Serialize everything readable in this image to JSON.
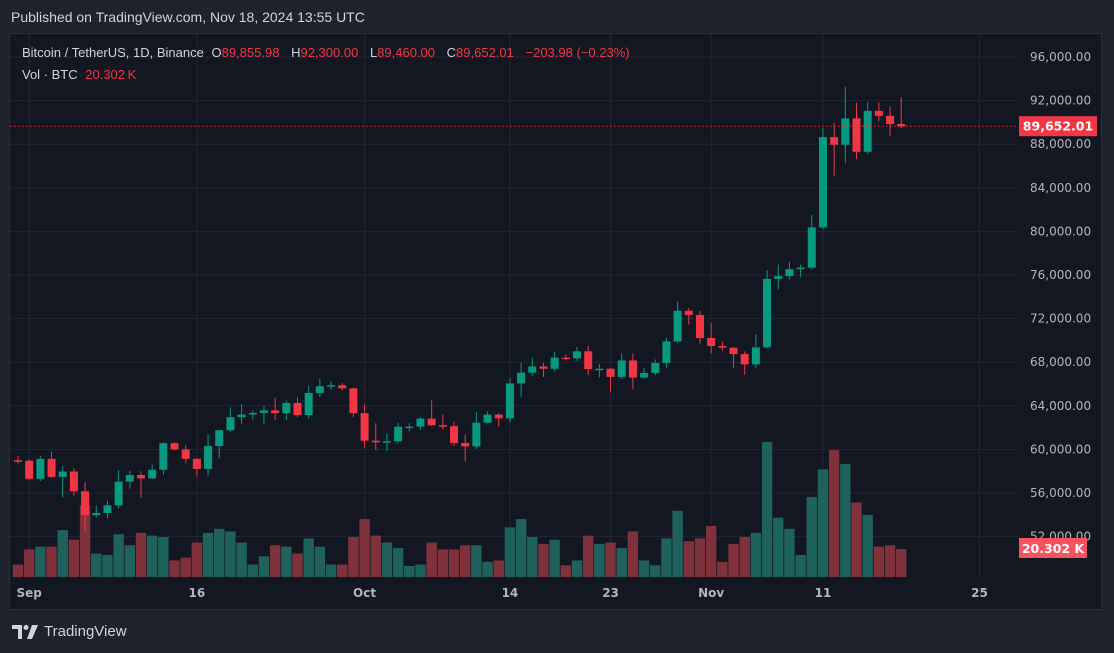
{
  "published": "Published on TradingView.com, Nov 18, 2024 13:55 UTC",
  "legend": {
    "symbol": "Bitcoin / TetherUS, 1D, Binance",
    "o_label": "O",
    "o": "89,855.98",
    "h_label": "H",
    "h": "92,300.00",
    "l_label": "L",
    "l": "89,460.00",
    "c_label": "C",
    "c": "89,652.01",
    "change": "−203.98 (−0.23%)",
    "vol_label": "Vol · BTC",
    "vol_value": "20.302 K"
  },
  "footer": {
    "brand": "TradingView",
    "logo_icon": "tradingview-logo-icon"
  },
  "colors": {
    "up": "#089981",
    "down": "#f23645",
    "vol_up": "#1f615d",
    "vol_down": "#7f323b",
    "background": "#131722"
  },
  "chart_data": {
    "type": "candlestick",
    "title": "Bitcoin / TetherUS, 1D, Binance",
    "start_date": "2024-08-31",
    "end_date": "2024-11-18",
    "ylim": [
      50500,
      97500
    ],
    "y_ticks": [
      96000,
      92000,
      88000,
      84000,
      80000,
      76000,
      72000,
      68000,
      64000,
      60000,
      56000,
      52000
    ],
    "y_tick_labels": [
      "96,000.00",
      "92,000.00",
      "88,000.00",
      "84,000.00",
      "80,000.00",
      "76,000.00",
      "72,000.00",
      "68,000.00",
      "64,000.00",
      "60,000.00",
      "56,000.00",
      "52,000.00"
    ],
    "x_ticks": [
      {
        "label": "Sep",
        "index": 1
      },
      {
        "label": "16",
        "index": 16
      },
      {
        "label": "Oct",
        "index": 31
      },
      {
        "label": "14",
        "index": 44
      },
      {
        "label": "23",
        "index": 53
      },
      {
        "label": "Nov",
        "index": 62
      },
      {
        "label": "11",
        "index": 72
      },
      {
        "label": "25",
        "index": 86
      }
    ],
    "last_price": 89652.01,
    "last_price_label": "89,652.01",
    "last_volume_label": "20.302 K",
    "volume_unit": "K BTC",
    "grid": true,
    "candles": [
      [
        59000,
        59400,
        58700,
        58970,
        9
      ],
      [
        58970,
        59100,
        57200,
        57300,
        20
      ],
      [
        57300,
        59400,
        57100,
        59130,
        22
      ],
      [
        59130,
        59800,
        57400,
        57480,
        22
      ],
      [
        57480,
        58500,
        55600,
        57970,
        34
      ],
      [
        57970,
        58300,
        55700,
        56160,
        27
      ],
      [
        56160,
        56990,
        52550,
        53960,
        52
      ],
      [
        53960,
        54850,
        53750,
        54160,
        17
      ],
      [
        54160,
        55300,
        53650,
        54870,
        16
      ],
      [
        54870,
        58100,
        54600,
        57040,
        31
      ],
      [
        57040,
        58050,
        56400,
        57650,
        23
      ],
      [
        57650,
        57990,
        55550,
        57340,
        32
      ],
      [
        57340,
        58600,
        57300,
        58130,
        30
      ],
      [
        58130,
        60650,
        57650,
        60570,
        29
      ],
      [
        60570,
        60650,
        59900,
        60000,
        12
      ],
      [
        60000,
        60400,
        58700,
        59130,
        14
      ],
      [
        59130,
        59200,
        57500,
        58210,
        25
      ],
      [
        58210,
        61350,
        57600,
        60310,
        32
      ],
      [
        60310,
        61800,
        59200,
        61760,
        35
      ],
      [
        61760,
        63850,
        61600,
        62950,
        33
      ],
      [
        62950,
        64150,
        62350,
        63200,
        25
      ],
      [
        63200,
        63550,
        62750,
        63350,
        9
      ],
      [
        63350,
        64000,
        62350,
        63580,
        15
      ],
      [
        63580,
        64750,
        62700,
        63330,
        23
      ],
      [
        63330,
        64500,
        62700,
        64260,
        22
      ],
      [
        64260,
        64800,
        62950,
        63140,
        17
      ],
      [
        63140,
        65850,
        62850,
        65180,
        28
      ],
      [
        65180,
        66500,
        64800,
        65790,
        22
      ],
      [
        65790,
        66250,
        65450,
        65890,
        9
      ],
      [
        65890,
        66100,
        65400,
        65600,
        9
      ],
      [
        65600,
        65650,
        62950,
        63330,
        29
      ],
      [
        63330,
        64150,
        60150,
        60800,
        42
      ],
      [
        60800,
        62400,
        59950,
        60650,
        30
      ],
      [
        60650,
        61500,
        59850,
        60750,
        25
      ],
      [
        60750,
        62450,
        60550,
        62080,
        21
      ],
      [
        62080,
        62400,
        61650,
        62090,
        8
      ],
      [
        62090,
        62950,
        61800,
        62820,
        9
      ],
      [
        62820,
        64500,
        62150,
        62220,
        25
      ],
      [
        62220,
        63200,
        61850,
        62130,
        20
      ],
      [
        62130,
        62550,
        60300,
        60580,
        20
      ],
      [
        60580,
        61350,
        58900,
        60270,
        23
      ],
      [
        60270,
        63400,
        60050,
        62450,
        23
      ],
      [
        62450,
        63500,
        62400,
        63190,
        11
      ],
      [
        63190,
        63300,
        62050,
        62850,
        12
      ],
      [
        62850,
        66500,
        62450,
        66050,
        36
      ],
      [
        66050,
        67950,
        64800,
        67040,
        42
      ],
      [
        67040,
        68400,
        66750,
        67610,
        29
      ],
      [
        67610,
        67950,
        66650,
        67400,
        24
      ],
      [
        67400,
        68950,
        67150,
        68420,
        27
      ],
      [
        68420,
        68700,
        68150,
        68360,
        8.5
      ],
      [
        68360,
        69400,
        68100,
        69000,
        12
      ],
      [
        69000,
        69500,
        66800,
        67370,
        30
      ],
      [
        67370,
        67850,
        66600,
        67400,
        24
      ],
      [
        67400,
        67450,
        65250,
        66650,
        25
      ],
      [
        66650,
        68800,
        66450,
        68160,
        21
      ],
      [
        68160,
        68800,
        65550,
        66590,
        33
      ],
      [
        66590,
        67450,
        66450,
        67010,
        12
      ],
      [
        67010,
        68250,
        66800,
        67930,
        8.5
      ],
      [
        67930,
        70250,
        67500,
        69910,
        28
      ],
      [
        69910,
        73600,
        69750,
        72720,
        48
      ],
      [
        72720,
        72950,
        71450,
        72340,
        26
      ],
      [
        72340,
        72700,
        69700,
        70220,
        28
      ],
      [
        70220,
        71600,
        68800,
        69480,
        37
      ],
      [
        69480,
        69950,
        69050,
        69330,
        11
      ],
      [
        69330,
        69400,
        67450,
        68740,
        24
      ],
      [
        68740,
        69000,
        66850,
        67800,
        29
      ],
      [
        67800,
        70550,
        67450,
        69360,
        32
      ],
      [
        69360,
        76450,
        69300,
        75640,
        98
      ],
      [
        75640,
        76950,
        74700,
        75900,
        43
      ],
      [
        75900,
        77200,
        75600,
        76540,
        35
      ],
      [
        76540,
        76950,
        75800,
        76680,
        16
      ],
      [
        76680,
        81500,
        76500,
        80370,
        58
      ],
      [
        80370,
        89500,
        80200,
        88650,
        78
      ],
      [
        88650,
        89950,
        85100,
        87950,
        92
      ],
      [
        87950,
        93250,
        86250,
        90370,
        82
      ],
      [
        90370,
        91800,
        86650,
        87300,
        54
      ],
      [
        87300,
        91850,
        87100,
        91060,
        45
      ],
      [
        91060,
        91850,
        90100,
        90600,
        22
      ],
      [
        90600,
        91450,
        88750,
        89850,
        23
      ],
      [
        89855.98,
        92300,
        89460,
        89652.01,
        20.302
      ]
    ]
  }
}
